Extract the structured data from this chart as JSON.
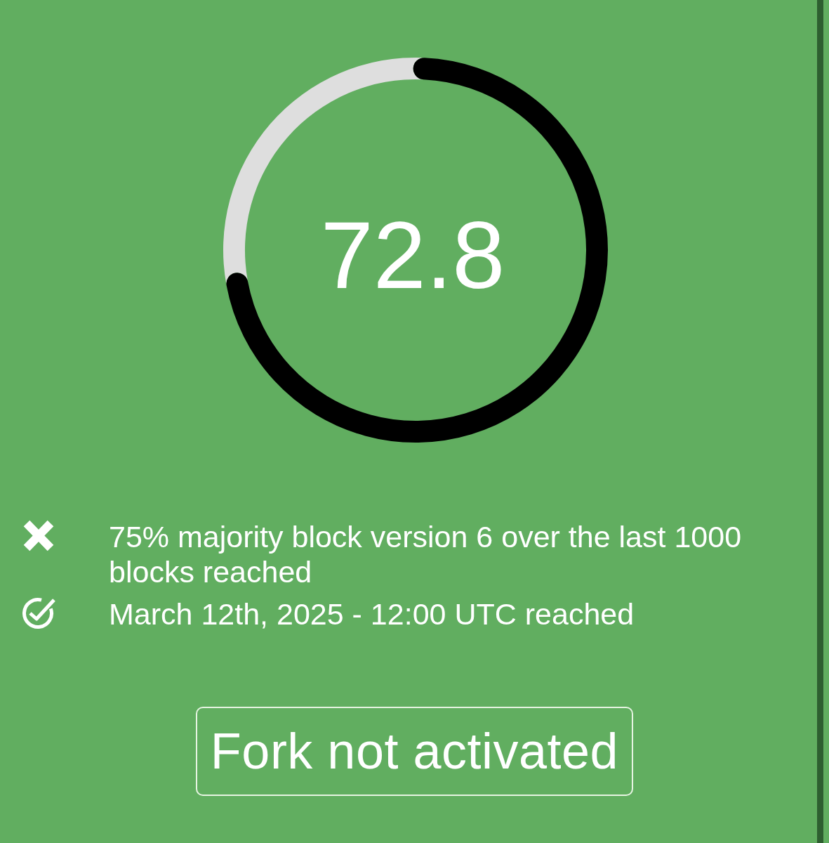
{
  "chart_data": {
    "type": "donut",
    "categories": [
      null,
      null
    ],
    "values": [
      72.8,
      27.2
    ],
    "colors": [
      "#000000",
      "#dedede"
    ],
    "value_labels": [
      "72.8",
      null
    ],
    "annotations": [
      "75% majority block version 6 over the last 1000 blocks reached",
      "March 12th, 2025 - 12:00 UTC reached",
      "Fork not activated"
    ]
  }
}
